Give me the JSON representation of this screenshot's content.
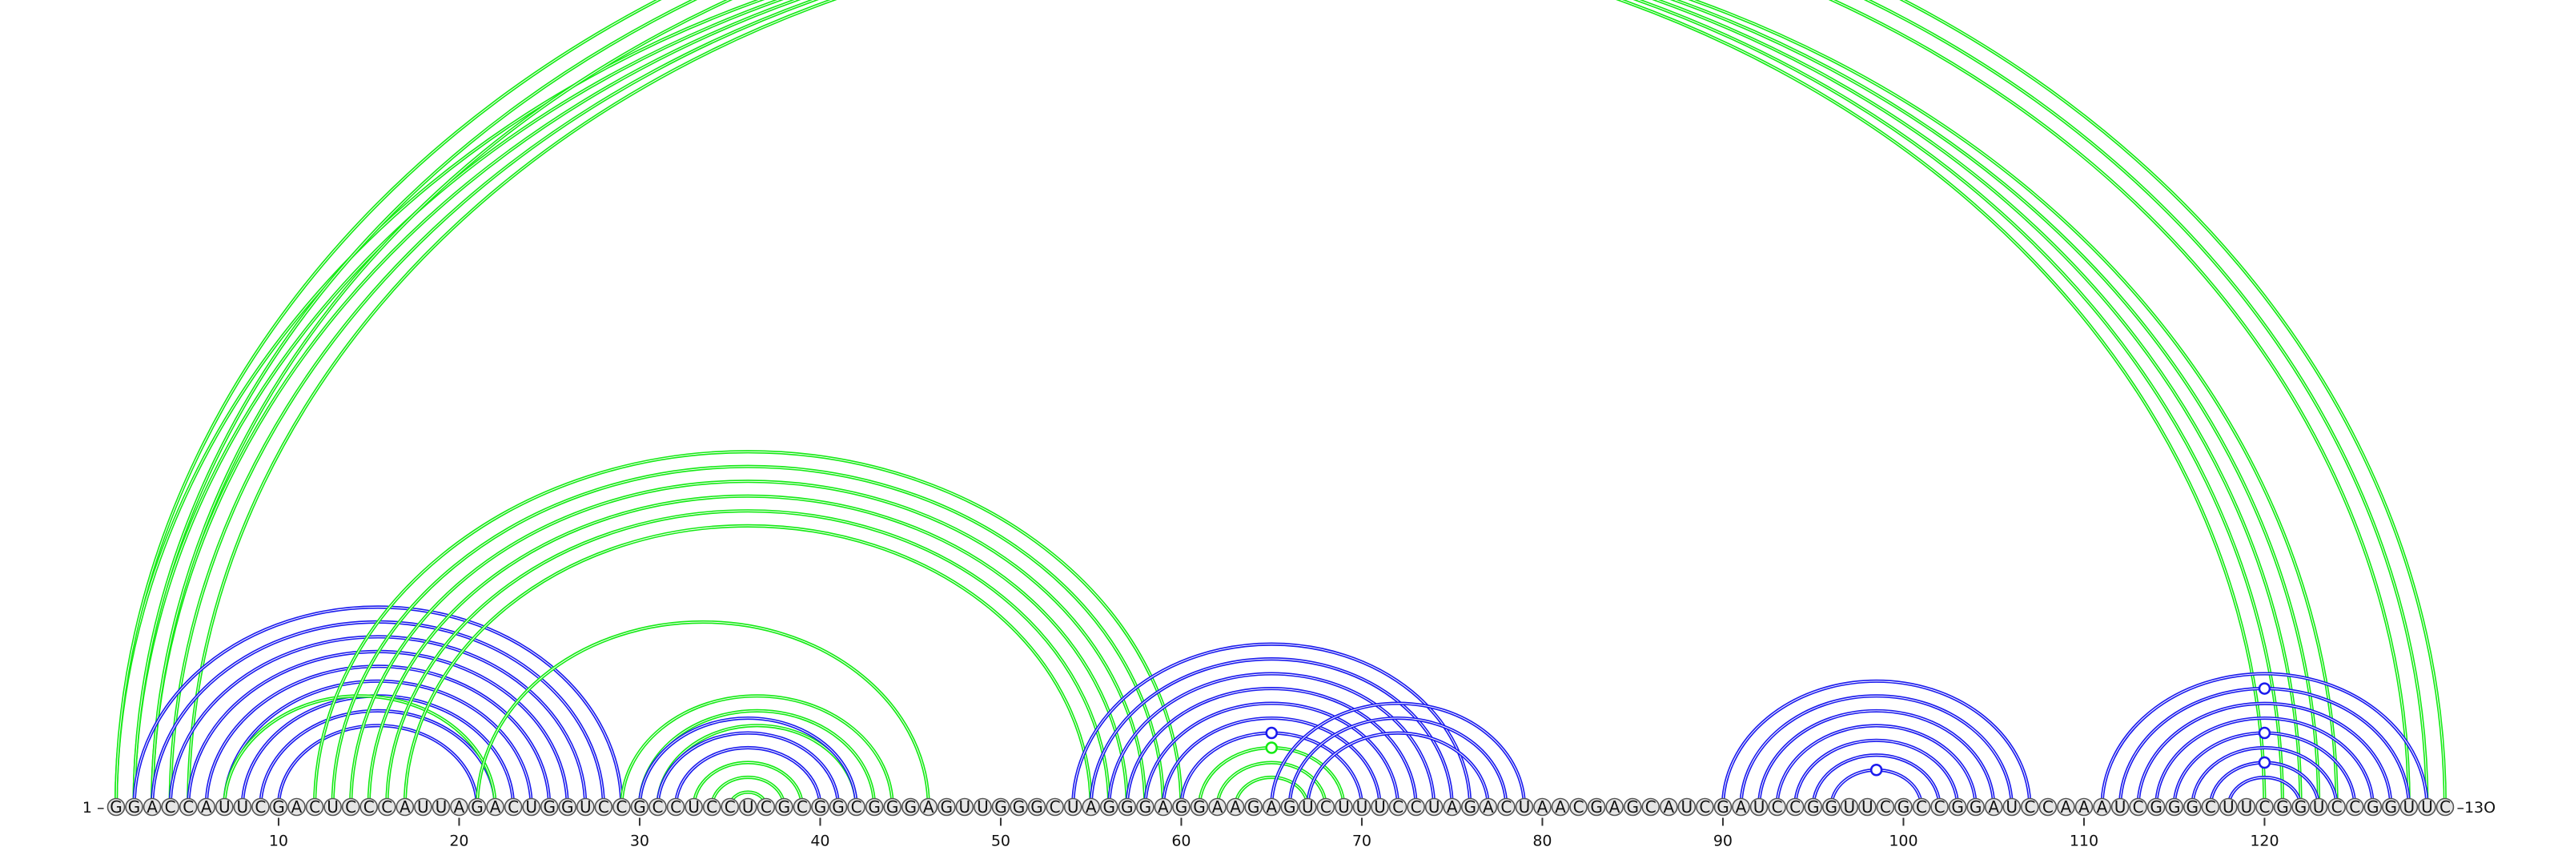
{
  "diagram": {
    "sequence": "GGACCAUUCGACUCCCAUUAGACUGGUCCGCCUCCUCGCGGCGGGAGUUGGGCUAGGGAGGAAGAGUCUUUCCUAGACUAACGAGCAUCGAUCCGGUUCGCCGGAUCCAAAUCGGGCUUCGGUCCGGUUC",
    "start_label": "1 –",
    "end_label": "–13O",
    "tick_labels": [
      {
        "pos": 10,
        "label": "10"
      },
      {
        "pos": 20,
        "label": "20"
      },
      {
        "pos": 30,
        "label": "30"
      },
      {
        "pos": 40,
        "label": "40"
      },
      {
        "pos": 50,
        "label": "50"
      },
      {
        "pos": 60,
        "label": "60"
      },
      {
        "pos": 70,
        "label": "70"
      },
      {
        "pos": 80,
        "label": "80"
      },
      {
        "pos": 90,
        "label": "90"
      },
      {
        "pos": 100,
        "label": "100"
      },
      {
        "pos": 110,
        "label": "110"
      },
      {
        "pos": 120,
        "label": "120"
      }
    ],
    "colors": {
      "green": "#14ea14",
      "blue": "#1a1aee"
    },
    "arcs": [
      {
        "i": 1,
        "j": 120,
        "c": "green"
      },
      {
        "i": 2,
        "j": 121,
        "c": "green"
      },
      {
        "i": 3,
        "j": 122,
        "c": "green"
      },
      {
        "i": 4,
        "j": 123,
        "c": "green"
      },
      {
        "i": 5,
        "j": 124,
        "c": "green"
      },
      {
        "i": 1,
        "j": 130,
        "c": "green",
        "marker": true
      },
      {
        "i": 2,
        "j": 129,
        "c": "green"
      },
      {
        "i": 3,
        "j": 128,
        "c": "green"
      },
      {
        "i": 2,
        "j": 29,
        "c": "blue"
      },
      {
        "i": 3,
        "j": 28,
        "c": "blue"
      },
      {
        "i": 4,
        "j": 27,
        "c": "blue"
      },
      {
        "i": 5,
        "j": 26,
        "c": "blue"
      },
      {
        "i": 6,
        "j": 25,
        "c": "blue"
      },
      {
        "i": 7,
        "j": 24,
        "c": "blue"
      },
      {
        "i": 8,
        "j": 23,
        "c": "blue"
      },
      {
        "i": 9,
        "j": 22,
        "c": "blue"
      },
      {
        "i": 10,
        "j": 21,
        "c": "blue"
      },
      {
        "i": 7,
        "j": 22,
        "c": "green"
      },
      {
        "i": 12,
        "j": 60,
        "c": "green"
      },
      {
        "i": 13,
        "j": 59,
        "c": "green"
      },
      {
        "i": 14,
        "j": 58,
        "c": "green"
      },
      {
        "i": 15,
        "j": 57,
        "c": "green"
      },
      {
        "i": 16,
        "j": 56,
        "c": "green"
      },
      {
        "i": 17,
        "j": 55,
        "c": "green"
      },
      {
        "i": 21,
        "j": 46,
        "c": "green"
      },
      {
        "i": 29,
        "j": 44,
        "c": "green"
      },
      {
        "i": 30,
        "j": 43,
        "c": "green"
      },
      {
        "i": 31,
        "j": 42,
        "c": "green"
      },
      {
        "i": 30,
        "j": 42,
        "c": "blue"
      },
      {
        "i": 31,
        "j": 41,
        "c": "blue"
      },
      {
        "i": 32,
        "j": 40,
        "c": "blue"
      },
      {
        "i": 33,
        "j": 39,
        "c": "green"
      },
      {
        "i": 34,
        "j": 38,
        "c": "green"
      },
      {
        "i": 35,
        "j": 37,
        "c": "green"
      },
      {
        "i": 54,
        "j": 76,
        "c": "blue"
      },
      {
        "i": 55,
        "j": 75,
        "c": "blue"
      },
      {
        "i": 56,
        "j": 74,
        "c": "blue"
      },
      {
        "i": 57,
        "j": 73,
        "c": "blue"
      },
      {
        "i": 58,
        "j": 72,
        "c": "blue"
      },
      {
        "i": 59,
        "j": 71,
        "c": "blue"
      },
      {
        "i": 60,
        "j": 70,
        "c": "blue",
        "marker": true
      },
      {
        "i": 61,
        "j": 69,
        "c": "green",
        "marker": true
      },
      {
        "i": 62,
        "j": 68,
        "c": "green"
      },
      {
        "i": 63,
        "j": 67,
        "c": "green"
      },
      {
        "i": 65,
        "j": 79,
        "c": "blue"
      },
      {
        "i": 66,
        "j": 78,
        "c": "blue"
      },
      {
        "i": 67,
        "j": 77,
        "c": "blue"
      },
      {
        "i": 90,
        "j": 107,
        "c": "blue"
      },
      {
        "i": 91,
        "j": 106,
        "c": "blue"
      },
      {
        "i": 92,
        "j": 105,
        "c": "blue"
      },
      {
        "i": 93,
        "j": 104,
        "c": "blue"
      },
      {
        "i": 94,
        "j": 103,
        "c": "blue"
      },
      {
        "i": 95,
        "j": 102,
        "c": "blue"
      },
      {
        "i": 96,
        "j": 101,
        "c": "blue",
        "marker": true
      },
      {
        "i": 111,
        "j": 129,
        "c": "blue"
      },
      {
        "i": 112,
        "j": 128,
        "c": "blue",
        "marker": true
      },
      {
        "i": 113,
        "j": 127,
        "c": "blue"
      },
      {
        "i": 114,
        "j": 126,
        "c": "blue"
      },
      {
        "i": 115,
        "j": 125,
        "c": "blue",
        "marker": true
      },
      {
        "i": 116,
        "j": 124,
        "c": "blue"
      },
      {
        "i": 117,
        "j": 123,
        "c": "blue",
        "marker": true
      },
      {
        "i": 118,
        "j": 122,
        "c": "blue"
      }
    ]
  }
}
